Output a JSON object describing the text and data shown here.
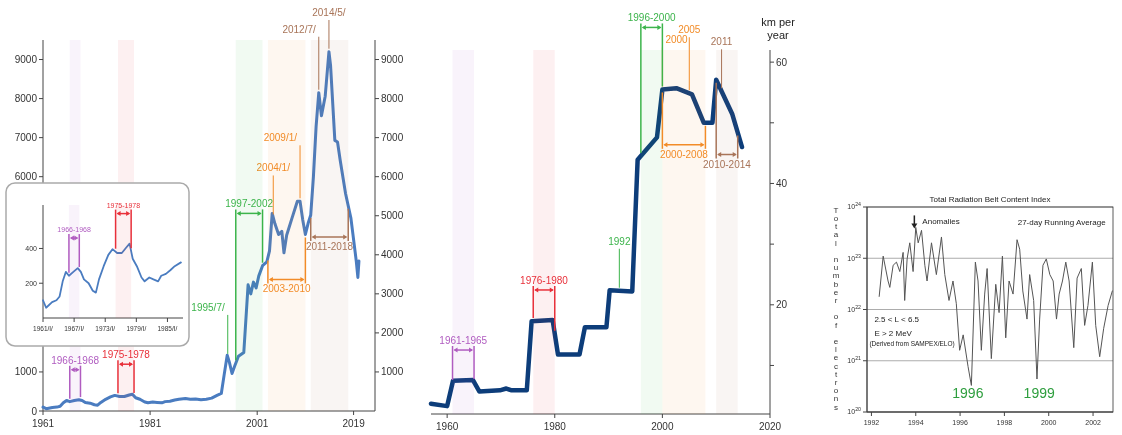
{
  "chart_data": [
    {
      "type": "line",
      "xlim": [
        1961,
        2023
      ],
      "xticks": [
        1961,
        1981,
        2001,
        2019
      ],
      "ylim": [
        0,
        9500
      ],
      "yticks": [
        0,
        1000,
        {
          "value": 2000,
          "label": null
        },
        {
          "value": 3000,
          "label": null
        },
        {
          "value": 4000,
          "label": null
        },
        {
          "value": 5000,
          "label": null
        },
        6000,
        7000,
        8000,
        9000
      ],
      "y2lim": [
        0,
        9500
      ],
      "y2ticks": [
        1000,
        2000,
        3000,
        4000,
        5000,
        6000,
        7000,
        8000,
        9000
      ],
      "series": [
        {
          "color": "#4a7cc0",
          "x": [
            1961,
            1961.6,
            1962.75,
            1963.6,
            1964.2,
            1964.8,
            1965.4,
            1966,
            1966.85,
            1967.7,
            1968.3,
            1968.9,
            1969.8,
            1970.6,
            1971.2,
            1971.8,
            1972.7,
            1973.6,
            1974.4,
            1975.3,
            1976.2,
            1977.1,
            1977.7,
            1978.3,
            1979.1,
            1980,
            1980.6,
            1981.5,
            1982.3,
            1983.2,
            1983.8,
            1984.7,
            1985.6,
            1986.4,
            1987.6,
            1988.5,
            1989.5,
            1990.5,
            1991.5,
            1992.5,
            1993.5,
            1994.3,
            1994.8,
            1995.4,
            1995.8,
            1996.3,
            1996.8,
            1997.5,
            1998.5,
            1999.3,
            1999.8,
            2000.3,
            2000.8,
            2001.3,
            2002,
            2002.8,
            2003.3,
            2003.8,
            2004.3,
            2005,
            2005.6,
            2006,
            2006.5,
            2007.5,
            2008.5,
            2009,
            2009.5,
            2010,
            2010.5,
            2011,
            2011.5,
            2012,
            2012.5,
            2013,
            2013.7,
            2014.4,
            2014.7,
            2015.5,
            2016,
            2016.5,
            2017.5,
            2018.5,
            2019.5,
            2019.8,
            2020
          ],
          "values": [
            100,
            60,
            90,
            100,
            120,
            210,
            270,
            240,
            270,
            290,
            270,
            220,
            200,
            160,
            150,
            220,
            300,
            360,
            400,
            370,
            370,
            410,
            430,
            340,
            300,
            230,
            210,
            230,
            220,
            210,
            240,
            250,
            280,
            300,
            320,
            300,
            310,
            290,
            300,
            330,
            400,
            450,
            900,
            1430,
            1250,
            960,
            1150,
            1400,
            1500,
            3230,
            3000,
            3300,
            3150,
            3460,
            3720,
            3820,
            4100,
            5060,
            4800,
            4520,
            4600,
            4050,
            4500,
            4940,
            5370,
            5370,
            4900,
            4520,
            4800,
            5020,
            6000,
            7280,
            8150,
            7560,
            8060,
            9200,
            8850,
            6930,
            6890,
            6420,
            5570,
            4940,
            3840,
            3420,
            3840
          ]
        }
      ],
      "ref_lines": [
        {
          "axis": "x",
          "value": 1995.5,
          "label": "1995/7/",
          "color": "#3cb44b"
        },
        {
          "axis": "x",
          "value": 2004,
          "label": "2004/1/",
          "color": "#f28c28"
        },
        {
          "axis": "x",
          "value": 2009,
          "label": "2009/1/",
          "color": "#f28c28"
        },
        {
          "axis": "x",
          "value": 2012.5,
          "label": "2012/7/",
          "color": "#a87458"
        },
        {
          "axis": "x",
          "value": 2014.4,
          "label": "2014/5/",
          "color": "#a87458"
        }
      ],
      "bands": [
        {
          "axis": "x",
          "from": 1966,
          "to": 1968,
          "label": "1966-1968",
          "color": "#b05cc0"
        },
        {
          "axis": "x",
          "from": 1975,
          "to": 1978,
          "label": "1975-1978",
          "color": "#e8303a"
        },
        {
          "axis": "x",
          "from": 1997,
          "to": 2002,
          "label": "1997-2002",
          "color": "#3cb44b"
        },
        {
          "axis": "x",
          "from": 2003,
          "to": 2010,
          "label": "2003-2010",
          "color": "#f28c28"
        },
        {
          "axis": "x",
          "from": 2011,
          "to": 2018,
          "label": "2011-2018",
          "color": "#a87458"
        }
      ]
    },
    {
      "type": "line",
      "xlim": [
        1961,
        1988
      ],
      "xticks": [
        {
          "value": 1961,
          "label": "1961/I/"
        },
        {
          "value": 1967,
          "label": "1967/I/"
        },
        {
          "value": 1973,
          "label": "1973/I/"
        },
        {
          "value": 1979,
          "label": "1979/I/"
        },
        {
          "value": 1985,
          "label": "1985/I/"
        }
      ],
      "ylim": [
        0,
        650
      ],
      "yticks": [
        200,
        400
      ],
      "series": [
        {
          "color": "#4a7cc0",
          "x": [
            1961,
            1961.6,
            1962.75,
            1963.6,
            1964.2,
            1964.8,
            1965.4,
            1966,
            1966.85,
            1967.7,
            1968.3,
            1968.9,
            1969.8,
            1970.6,
            1971.2,
            1971.8,
            1972.7,
            1973.6,
            1974.4,
            1975.3,
            1976.2,
            1977.1,
            1977.7,
            1978.3,
            1979.1,
            1980,
            1980.6,
            1981.5,
            1982.3,
            1983.2,
            1983.8,
            1984.7,
            1985.6,
            1986.4,
            1987.6
          ],
          "values": [
            102,
            59,
            91,
            102,
            124,
            211,
            265,
            243,
            265,
            287,
            265,
            222,
            200,
            157,
            146,
            222,
            298,
            363,
            396,
            374,
            374,
            407,
            428,
            341,
            298,
            233,
            211,
            233,
            222,
            211,
            243,
            254,
            276,
            298,
            320
          ]
        }
      ],
      "bands": [
        {
          "axis": "x",
          "from": 1966,
          "to": 1968,
          "label": "1966-1968",
          "color": "#b05cc0"
        },
        {
          "axis": "x",
          "from": 1975,
          "to": 1978,
          "label": "1975-1978",
          "color": "#e8303a"
        }
      ]
    },
    {
      "type": "line",
      "xlim": [
        1957,
        2020
      ],
      "xticks": [
        1960,
        1980,
        2000,
        2020
      ],
      "y2lim": [
        2,
        62
      ],
      "y2ticks": [
        {
          "value": 10,
          "label": null
        },
        20,
        {
          "value": 30,
          "label": null
        },
        40,
        {
          "value": 50,
          "label": null
        },
        60
      ],
      "y2label": "km per year",
      "series": [
        {
          "color": "#0d3d7a",
          "axis": "y2",
          "x": [
            1957,
            1960,
            1961.1,
            1964.8,
            1966,
            1969.8,
            1971,
            1972,
            1974.8,
            1975.7,
            1979.6,
            1980.6,
            1984.6,
            1985.6,
            1989.6,
            1990.2,
            1994.4,
            1995.4,
            1999,
            2000,
            2002.6,
            2005.5,
            2007.7,
            2009.3,
            2010,
            2013,
            2014.8
          ],
          "values": [
            3.7,
            3.3,
            7.5,
            7.6,
            5.7,
            5.9,
            6.2,
            5.9,
            5.9,
            17.3,
            17.5,
            11.8,
            11.8,
            16.3,
            16.3,
            22.4,
            22.2,
            43.9,
            47.6,
            55.5,
            55.7,
            54.7,
            50,
            50,
            57.1,
            51.4,
            46
          ]
        }
      ],
      "ref_lines": [
        {
          "axis": "x",
          "value": 1992,
          "label": "1992",
          "color": "#3cb44b"
        },
        {
          "axis": "x",
          "value": 2000,
          "label": "2000",
          "color": "#f28c28"
        },
        {
          "axis": "x",
          "value": 2005,
          "label": "2005",
          "color": "#f28c28"
        },
        {
          "axis": "x",
          "value": 2011,
          "label": "2011",
          "color": "#a87458"
        }
      ],
      "bands": [
        {
          "axis": "x",
          "from": 1961,
          "to": 1965,
          "label": "1961-1965",
          "color": "#b05cc0"
        },
        {
          "axis": "x",
          "from": 1976,
          "to": 1980,
          "label": "1976-1980",
          "color": "#e8303a"
        },
        {
          "axis": "x",
          "from": 1996,
          "to": 2000,
          "label": "1996-2000",
          "color": "#3cb44b"
        },
        {
          "axis": "x",
          "from": 2000,
          "to": 2008,
          "label": "2000-2008",
          "color": "#f28c28"
        },
        {
          "axis": "x",
          "from": 2010,
          "to": 2014,
          "label": "2010-2014",
          "color": "#a87458"
        }
      ]
    },
    {
      "type": "line",
      "title": "Total Radiation Belt Content Index",
      "ylabel": "Total number of electrons",
      "log": "y",
      "grid": "y",
      "xlim": [
        1991.8,
        2002.9
      ],
      "xticks": [
        1992,
        1994,
        1996,
        1998,
        2000,
        2002
      ],
      "ylim": [
        1e+20,
        1e+24
      ],
      "yticks": [
        {
          "value": 1e+20,
          "label": "10$^{20}$"
        },
        {
          "value": 1e+21,
          "label": "10$^{21}$"
        },
        {
          "value": 1e+22,
          "label": "10$^{22}$"
        },
        {
          "value": 1e+23,
          "label": "10$^{23}$"
        },
        {
          "value": 1e+24,
          "label": "10$^{24}$"
        }
      ],
      "series": [
        {
          "color": "#555555",
          "x": [
            1992.35,
            1992.53,
            1992.75,
            1992.83,
            1992.98,
            1993.13,
            1993.28,
            1993.43,
            1993.5,
            1993.61,
            1993.73,
            1993.88,
            1994,
            1994.11,
            1994.26,
            1994.41,
            1994.51,
            1994.71,
            1994.93,
            1995.16,
            1995.31,
            1995.5,
            1995.68,
            1995.83,
            1995.98,
            1996.14,
            1996.36,
            1996.51,
            1996.69,
            1996.81,
            1996.96,
            1997.11,
            1997.22,
            1997.41,
            1997.61,
            1997.76,
            1997.91,
            1998.06,
            1998.21,
            1998.39,
            1998.57,
            1998.69,
            1998.83,
            1999.02,
            1999.14,
            1999.32,
            1999.47,
            1999.59,
            1999.74,
            1999.89,
            2000.05,
            2000.2,
            2000.35,
            2000.47,
            2000.62,
            2000.77,
            2000.92,
            2001.13,
            2001.28,
            2001.47,
            2001.62,
            2001.77,
            2001.97,
            2002.12,
            2002.3,
            2002.48,
            2002.68,
            2002.87
          ],
          "values": [
            1.8e+22,
            1.1e+23,
            3.6e+22,
            2.7e+22,
            7.3e+22,
            8.4e+22,
            5.5e+22,
            1.3e+23,
            1.5e+22,
            9.7e+22,
            2e+23,
            5.5e+22,
            4e+23,
            2e+23,
            3.5e+23,
            7.3e+22,
            3.6e+22,
            2e+23,
            4.8e+22,
            2.6e+23,
            4.8e+22,
            1.5e+22,
            3.6e+22,
            1.3e+22,
            1.6e+21,
            3.2e+21,
            7.7e+20,
            3.3e+20,
            8.4e+22,
            3.6e+22,
            1.6e+21,
            2e+22,
            6.3e+22,
            1.1e+21,
            3.1e+22,
            8.7e+21,
            1.1e+23,
            2.8e+21,
            3.6e+22,
            2e+22,
            2.3e+23,
            1.5e+23,
            2.3e+22,
            6.5e+21,
            4.8e+22,
            1.5e+22,
            4.4e+20,
            6.5e+21,
            7.3e+22,
            9.7e+22,
            4.8e+22,
            3.6e+22,
            6.5e+21,
            2e+22,
            3.6e+22,
            8.4e+22,
            3.6e+22,
            1.8e+21,
            4.1e+22,
            6.3e+22,
            4.9e+21,
            1.2e+22,
            8.4e+22,
            4.9e+21,
            1.2e+21,
            4.3e+21,
            1.2e+22,
            2.3e+22
          ]
        }
      ],
      "annotations": [
        "27-day Running Average",
        "2.5 < L < 6.5",
        "E > 2 MeV",
        "(Derived from SAMPEX/ELO)",
        "Anomalies",
        "1996",
        "1999"
      ]
    }
  ]
}
